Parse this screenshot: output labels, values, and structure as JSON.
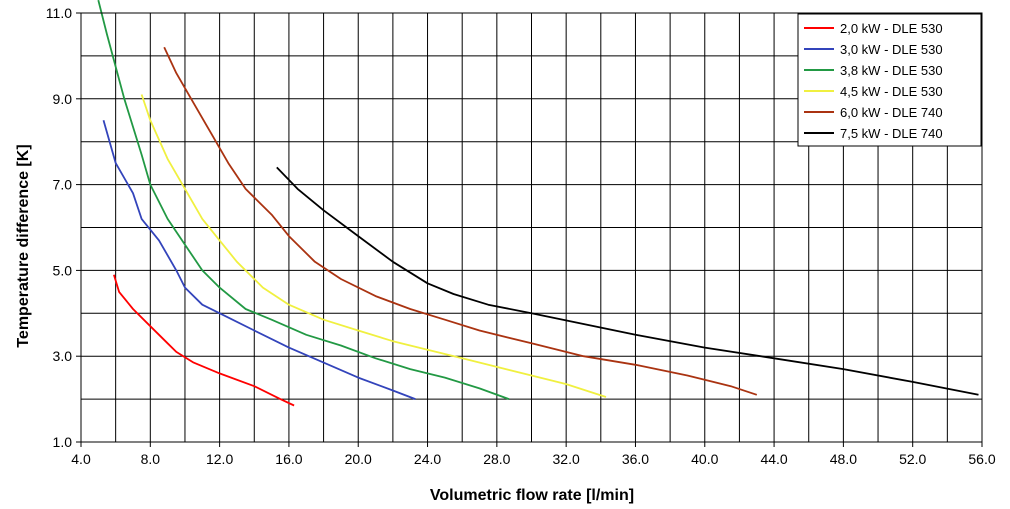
{
  "chart_data": {
    "type": "line",
    "xlabel": "Volumetric flow rate [l/min]",
    "ylabel": "Temperature difference [K]",
    "xlim": [
      4.0,
      56.0
    ],
    "ylim": [
      1.0,
      11.0
    ],
    "x_ticks": [
      "4.0",
      "8.0",
      "12.0",
      "16.0",
      "20.0",
      "24.0",
      "28.0",
      "32.0",
      "36.0",
      "40.0",
      "44.0",
      "48.0",
      "52.0",
      "56.0"
    ],
    "y_ticks": [
      "1.0",
      "3.0",
      "5.0",
      "7.0",
      "9.0",
      "11.0"
    ],
    "grid": true,
    "legend_position": "top-right",
    "series": [
      {
        "name": "2,0 kW - DLE 530",
        "color": "#ff0000",
        "points": [
          [
            5.9,
            4.9
          ],
          [
            6.2,
            4.5
          ],
          [
            7.0,
            4.1
          ],
          [
            8.0,
            3.7
          ],
          [
            9.0,
            3.3
          ],
          [
            9.5,
            3.1
          ],
          [
            10.5,
            2.85
          ],
          [
            12.0,
            2.6
          ],
          [
            14.0,
            2.3
          ],
          [
            15.5,
            2.0
          ],
          [
            16.3,
            1.85
          ]
        ]
      },
      {
        "name": "3,0 kW - DLE 530",
        "color": "#3344bb",
        "points": [
          [
            5.3,
            8.5
          ],
          [
            6.0,
            7.5
          ],
          [
            7.0,
            6.8
          ],
          [
            7.5,
            6.2
          ],
          [
            8.5,
            5.7
          ],
          [
            9.5,
            5.0
          ],
          [
            10.0,
            4.6
          ],
          [
            11.0,
            4.2
          ],
          [
            12.5,
            3.9
          ],
          [
            14.0,
            3.6
          ],
          [
            16.0,
            3.2
          ],
          [
            18.0,
            2.85
          ],
          [
            20.0,
            2.5
          ],
          [
            22.0,
            2.2
          ],
          [
            23.3,
            2.0
          ]
        ]
      },
      {
        "name": "3,8 kW - DLE 530",
        "color": "#229944",
        "points": [
          [
            5.0,
            11.3
          ],
          [
            5.5,
            10.5
          ],
          [
            6.5,
            9.0
          ],
          [
            7.5,
            7.7
          ],
          [
            8.0,
            7.0
          ],
          [
            9.0,
            6.2
          ],
          [
            10.0,
            5.6
          ],
          [
            11.0,
            5.0
          ],
          [
            12.0,
            4.6
          ],
          [
            13.5,
            4.1
          ],
          [
            15.0,
            3.85
          ],
          [
            17.0,
            3.5
          ],
          [
            19.0,
            3.25
          ],
          [
            21.0,
            2.95
          ],
          [
            23.0,
            2.7
          ],
          [
            25.0,
            2.5
          ],
          [
            27.0,
            2.25
          ],
          [
            28.7,
            2.0
          ]
        ]
      },
      {
        "name": "4,5 kW - DLE 530",
        "color": "#f0f040",
        "points": [
          [
            7.5,
            9.1
          ],
          [
            8.0,
            8.5
          ],
          [
            9.0,
            7.6
          ],
          [
            10.0,
            6.9
          ],
          [
            11.0,
            6.2
          ],
          [
            12.0,
            5.7
          ],
          [
            13.0,
            5.2
          ],
          [
            14.5,
            4.6
          ],
          [
            16.0,
            4.2
          ],
          [
            18.0,
            3.85
          ],
          [
            20.0,
            3.6
          ],
          [
            22.0,
            3.35
          ],
          [
            24.0,
            3.15
          ],
          [
            26.0,
            2.95
          ],
          [
            28.0,
            2.75
          ],
          [
            30.0,
            2.55
          ],
          [
            32.0,
            2.35
          ],
          [
            34.3,
            2.05
          ]
        ]
      },
      {
        "name": "6,0 kW - DLE 740",
        "color": "#aa3311",
        "points": [
          [
            8.8,
            10.2
          ],
          [
            9.5,
            9.6
          ],
          [
            10.5,
            8.9
          ],
          [
            11.5,
            8.2
          ],
          [
            12.5,
            7.5
          ],
          [
            13.5,
            6.9
          ],
          [
            15.0,
            6.3
          ],
          [
            16.0,
            5.8
          ],
          [
            17.5,
            5.2
          ],
          [
            19.0,
            4.8
          ],
          [
            21.0,
            4.4
          ],
          [
            23.0,
            4.1
          ],
          [
            25.0,
            3.85
          ],
          [
            27.0,
            3.6
          ],
          [
            30.0,
            3.3
          ],
          [
            33.0,
            3.0
          ],
          [
            36.0,
            2.8
          ],
          [
            39.0,
            2.55
          ],
          [
            41.5,
            2.3
          ],
          [
            43.0,
            2.1
          ]
        ]
      },
      {
        "name": "7,5 kW - DLE 740",
        "color": "#000000",
        "points": [
          [
            15.3,
            7.4
          ],
          [
            16.5,
            6.9
          ],
          [
            18.0,
            6.4
          ],
          [
            20.0,
            5.8
          ],
          [
            22.0,
            5.2
          ],
          [
            24.0,
            4.7
          ],
          [
            25.5,
            4.45
          ],
          [
            27.5,
            4.2
          ],
          [
            30.0,
            4.0
          ],
          [
            33.0,
            3.75
          ],
          [
            36.0,
            3.5
          ],
          [
            40.0,
            3.2
          ],
          [
            44.0,
            2.95
          ],
          [
            48.0,
            2.7
          ],
          [
            52.0,
            2.4
          ],
          [
            55.8,
            2.1
          ]
        ]
      }
    ]
  }
}
